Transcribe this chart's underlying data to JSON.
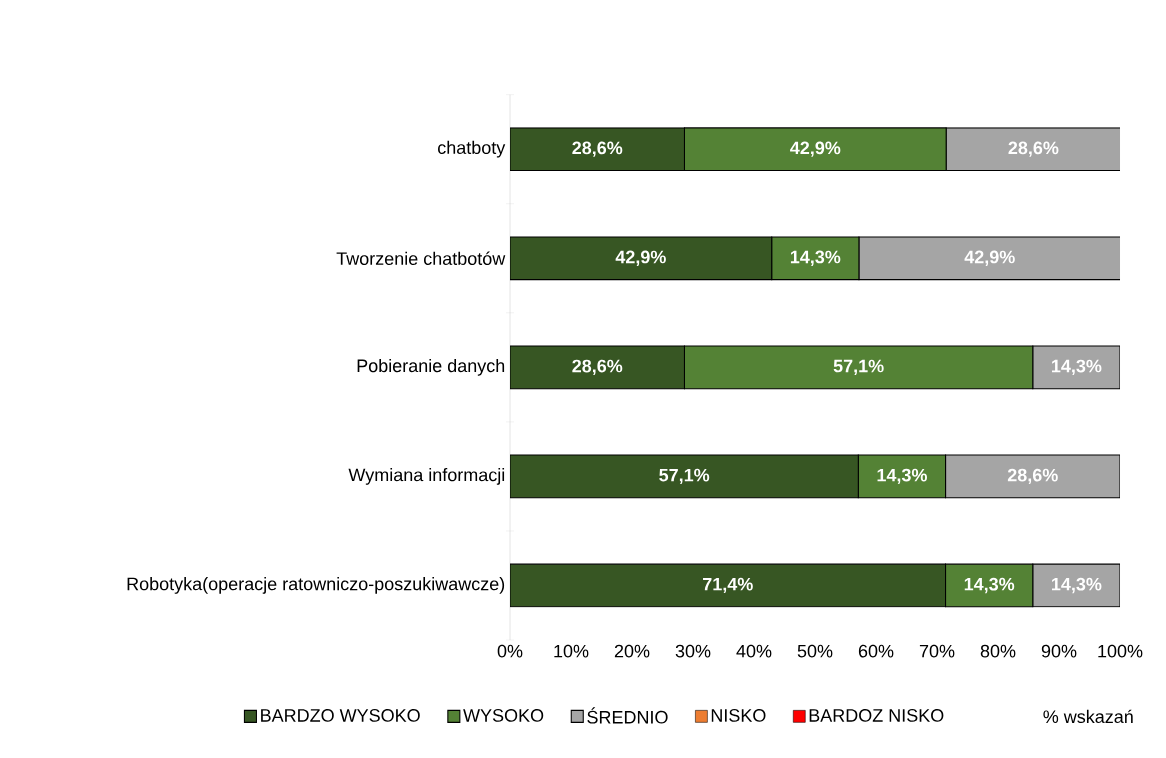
{
  "chart_data": {
    "type": "bar",
    "orientation": "horizontal",
    "stacked": true,
    "xlabel": "% wskazań",
    "legend": "bottom",
    "categories": [
      "chatboty",
      "Tworzenie chatbotów",
      "Pobieranie danych",
      "Wymiana informacji",
      "Robotyka(operacje ratowniczo-poszukiwawcze)"
    ],
    "xlim": [
      0,
      100
    ],
    "xticks": [
      {
        "value": 0,
        "label": "0%"
      },
      {
        "value": 10,
        "label": "10%"
      },
      {
        "value": 20,
        "label": "20%"
      },
      {
        "value": 30,
        "label": "30%"
      },
      {
        "value": 40,
        "label": "40%"
      },
      {
        "value": 50,
        "label": "50%"
      },
      {
        "value": 60,
        "label": "60%"
      },
      {
        "value": 70,
        "label": "70%"
      },
      {
        "value": 80,
        "label": "80%"
      },
      {
        "value": 90,
        "label": "90%"
      },
      {
        "value": 100,
        "label": "100%"
      }
    ],
    "series": [
      {
        "name": "BARDZO WYSOKO",
        "color": "#375623",
        "values": [
          28.6,
          42.9,
          28.6,
          57.1,
          71.4
        ],
        "value_labels": [
          "28,6%",
          "42,9%",
          "28,6%",
          "57,1%",
          "71,4%"
        ]
      },
      {
        "name": "WYSOKO",
        "color": "#548235",
        "values": [
          42.9,
          14.3,
          57.1,
          14.3,
          14.3
        ],
        "value_labels": [
          "42,9%",
          "14,3%",
          "57,1%",
          "14,3%",
          "14,3%"
        ]
      },
      {
        "name": "ŚREDNIO",
        "color": "#a5a5a5",
        "values": [
          28.6,
          42.9,
          14.3,
          28.6,
          14.3
        ],
        "value_labels": [
          "28,6%",
          "42,9%",
          "14,3%",
          "28,6%",
          "14,3%"
        ]
      },
      {
        "name": "NISKO",
        "color": "#ed7d31",
        "values": [
          null,
          null,
          null,
          null,
          null
        ]
      },
      {
        "name": "BARDOZ NISKO",
        "color": "#ff0000",
        "values": [
          null,
          null,
          null,
          null,
          null
        ]
      }
    ]
  }
}
